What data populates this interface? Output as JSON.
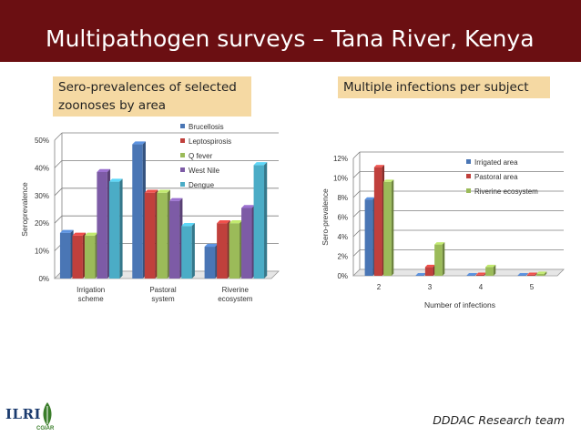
{
  "title": "Multipathogen surveys – Tana River, Kenya",
  "label_left": "Sero-prevalences of selected zoonoses by area",
  "label_right": "Multiple infections per subject",
  "footer": "DDDAC Research team",
  "logos": {
    "ilri": "ILRI",
    "cgiar": "CGIAR"
  },
  "colors": {
    "header": "#6b0f12",
    "label_bg": "#f5d9a3",
    "blue": "#4a76b5",
    "red": "#c0403c",
    "green": "#9bbb59",
    "purple": "#7d5ba6",
    "cyan": "#4bacc6"
  },
  "chart_data": [
    {
      "type": "bar",
      "title": "",
      "ylabel": "Seroprevalence",
      "xlabel": "",
      "categories": [
        "Irrigation scheme",
        "Pastoral system",
        "Riverine ecosystem"
      ],
      "ylim": [
        0,
        50
      ],
      "yticks": [
        "0%",
        "10%",
        "20%",
        "30%",
        "40%",
        "50%"
      ],
      "legend_position": "top-right",
      "series": [
        {
          "name": "Brucellosis",
          "color": "#4a76b5",
          "values": [
            16.5,
            48.5,
            11.5
          ]
        },
        {
          "name": "Leptospirosis",
          "color": "#c0403c",
          "values": [
            15.5,
            31,
            20
          ]
        },
        {
          "name": "Q fever",
          "color": "#9bbb59",
          "values": [
            15.5,
            31,
            20
          ]
        },
        {
          "name": "West Nile",
          "color": "#7d5ba6",
          "values": [
            38.5,
            28,
            25.5
          ]
        },
        {
          "name": "Dengue",
          "color": "#4bacc6",
          "values": [
            35,
            19,
            41
          ]
        }
      ]
    },
    {
      "type": "bar",
      "title": "",
      "ylabel": "Sero-prevalence",
      "xlabel": "Number of infections",
      "categories": [
        "2",
        "3",
        "4",
        "5"
      ],
      "ylim": [
        0,
        12
      ],
      "yticks": [
        "0%",
        "2%",
        "4%",
        "6%",
        "8%",
        "10%",
        "12%"
      ],
      "legend_position": "top-right",
      "series": [
        {
          "name": "Irrigated area",
          "color": "#4a76b5",
          "values": [
            7.8,
            0.05,
            0.05,
            0.05
          ]
        },
        {
          "name": "Pastoral area",
          "color": "#c0403c",
          "values": [
            11.1,
            0.9,
            0.1,
            0.1
          ]
        },
        {
          "name": "Riverine ecosystem",
          "color": "#9bbb59",
          "values": [
            9.6,
            3.2,
            0.9,
            0.2
          ]
        }
      ]
    }
  ]
}
